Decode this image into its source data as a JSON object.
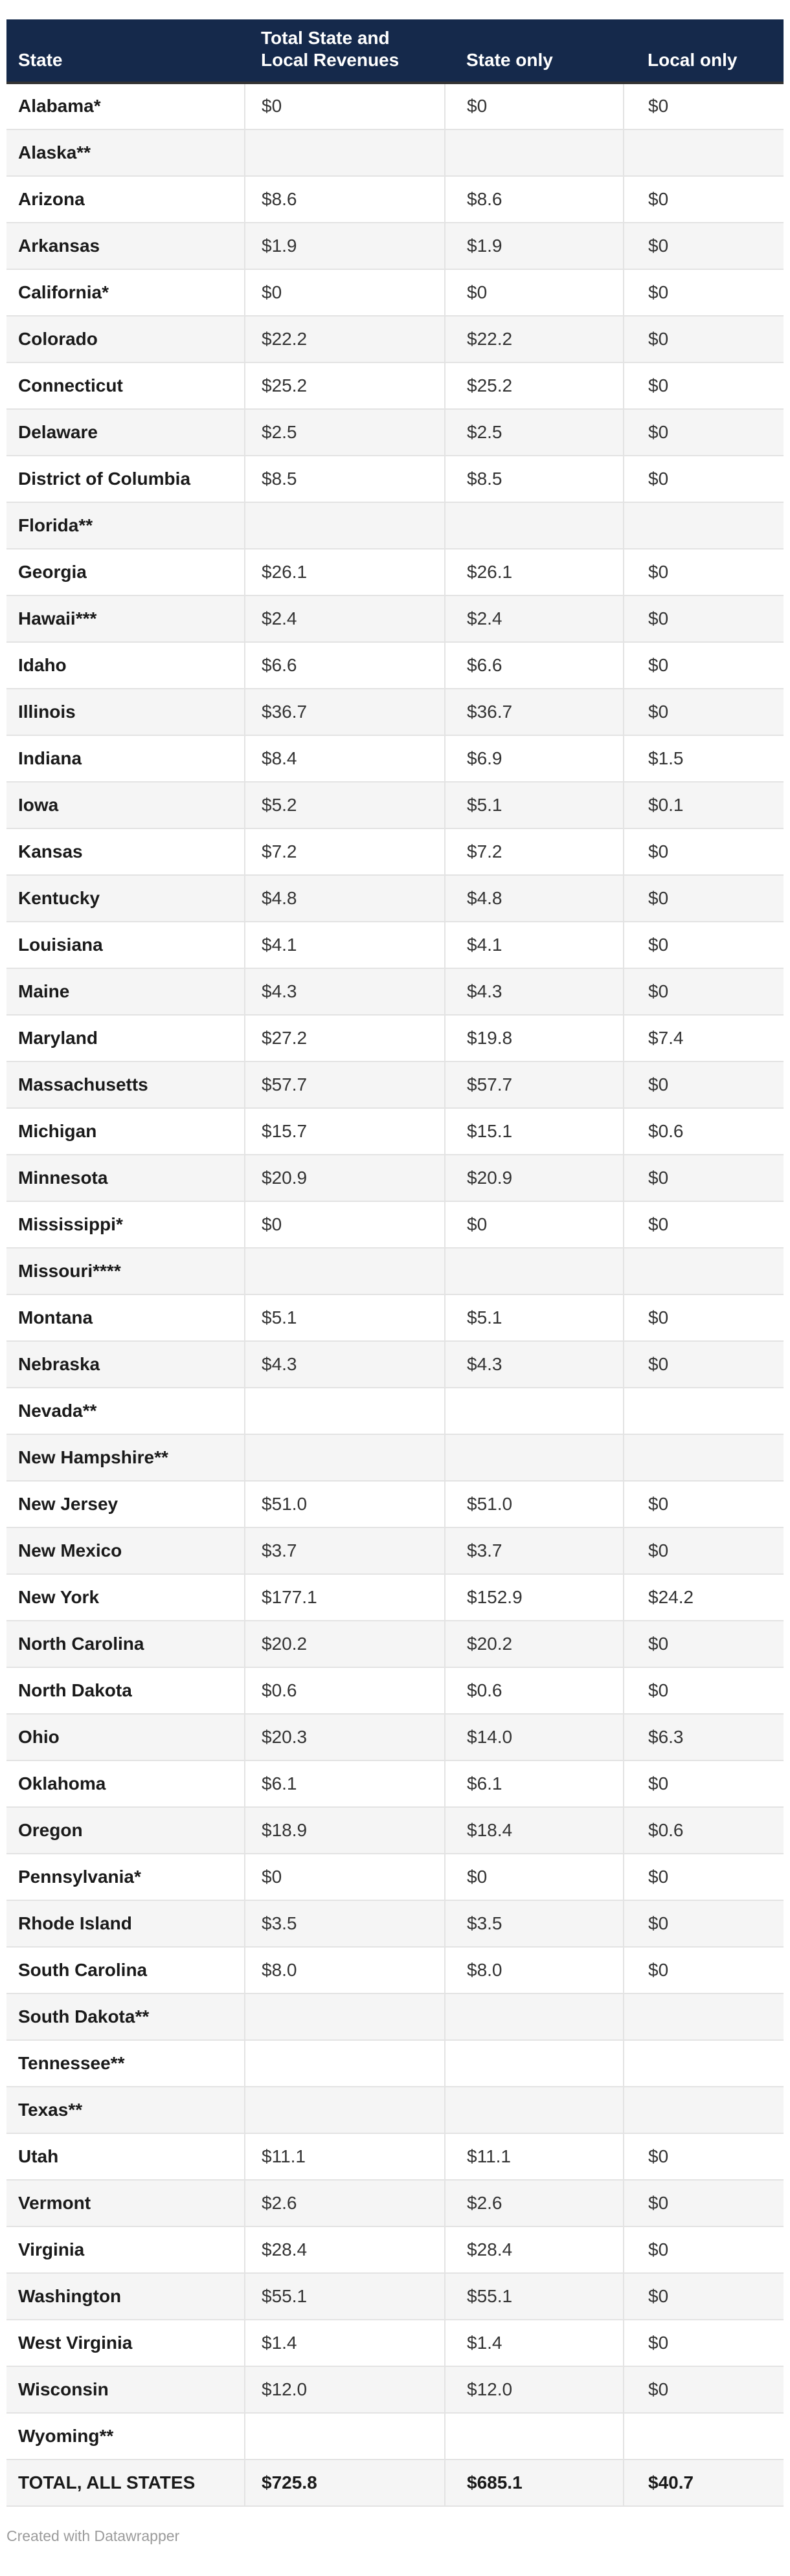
{
  "colors": {
    "header_bg": "#15294b",
    "header_text": "#ffffff",
    "header_bottom_border": "#333333",
    "row_stripe": "#f5f5f5",
    "row_border": "#e3e3e3",
    "state_text": "#1a1a1a",
    "value_text": "#333333",
    "credit_text": "#9b9b9b"
  },
  "footer": {
    "credit": "Created with Datawrapper"
  },
  "chart_data": {
    "type": "table",
    "columns": [
      "State",
      "Total State and Local Revenues",
      "State only",
      "Local only"
    ],
    "rows": [
      {
        "state": "Alabama*",
        "total": "$0",
        "state_only": "$0",
        "local_only": "$0"
      },
      {
        "state": "Alaska**",
        "total": "",
        "state_only": "",
        "local_only": ""
      },
      {
        "state": "Arizona",
        "total": "$8.6",
        "state_only": "$8.6",
        "local_only": "$0"
      },
      {
        "state": "Arkansas",
        "total": "$1.9",
        "state_only": "$1.9",
        "local_only": "$0"
      },
      {
        "state": "California*",
        "total": "$0",
        "state_only": "$0",
        "local_only": "$0"
      },
      {
        "state": "Colorado",
        "total": "$22.2",
        "state_only": "$22.2",
        "local_only": "$0"
      },
      {
        "state": "Connecticut",
        "total": "$25.2",
        "state_only": "$25.2",
        "local_only": "$0"
      },
      {
        "state": "Delaware",
        "total": "$2.5",
        "state_only": "$2.5",
        "local_only": "$0"
      },
      {
        "state": "District of Columbia",
        "total": "$8.5",
        "state_only": "$8.5",
        "local_only": "$0"
      },
      {
        "state": "Florida**",
        "total": "",
        "state_only": "",
        "local_only": ""
      },
      {
        "state": "Georgia",
        "total": "$26.1",
        "state_only": "$26.1",
        "local_only": "$0"
      },
      {
        "state": "Hawaii***",
        "total": "$2.4",
        "state_only": "$2.4",
        "local_only": "$0"
      },
      {
        "state": "Idaho",
        "total": "$6.6",
        "state_only": "$6.6",
        "local_only": "$0"
      },
      {
        "state": "Illinois",
        "total": "$36.7",
        "state_only": "$36.7",
        "local_only": "$0"
      },
      {
        "state": "Indiana",
        "total": "$8.4",
        "state_only": "$6.9",
        "local_only": "$1.5"
      },
      {
        "state": "Iowa",
        "total": "$5.2",
        "state_only": "$5.1",
        "local_only": "$0.1"
      },
      {
        "state": "Kansas",
        "total": "$7.2",
        "state_only": "$7.2",
        "local_only": "$0"
      },
      {
        "state": "Kentucky",
        "total": "$4.8",
        "state_only": "$4.8",
        "local_only": "$0"
      },
      {
        "state": "Louisiana",
        "total": "$4.1",
        "state_only": "$4.1",
        "local_only": "$0"
      },
      {
        "state": "Maine",
        "total": "$4.3",
        "state_only": "$4.3",
        "local_only": "$0"
      },
      {
        "state": "Maryland",
        "total": "$27.2",
        "state_only": "$19.8",
        "local_only": "$7.4"
      },
      {
        "state": "Massachusetts",
        "total": "$57.7",
        "state_only": "$57.7",
        "local_only": "$0"
      },
      {
        "state": "Michigan",
        "total": "$15.7",
        "state_only": "$15.1",
        "local_only": "$0.6"
      },
      {
        "state": "Minnesota",
        "total": "$20.9",
        "state_only": "$20.9",
        "local_only": "$0"
      },
      {
        "state": "Mississippi*",
        "total": "$0",
        "state_only": "$0",
        "local_only": "$0"
      },
      {
        "state": "Missouri****",
        "total": "",
        "state_only": "",
        "local_only": ""
      },
      {
        "state": "Montana",
        "total": "$5.1",
        "state_only": "$5.1",
        "local_only": "$0"
      },
      {
        "state": "Nebraska",
        "total": "$4.3",
        "state_only": "$4.3",
        "local_only": "$0"
      },
      {
        "state": "Nevada**",
        "total": "",
        "state_only": "",
        "local_only": ""
      },
      {
        "state": "New Hampshire**",
        "total": "",
        "state_only": "",
        "local_only": ""
      },
      {
        "state": "New Jersey",
        "total": "$51.0",
        "state_only": "$51.0",
        "local_only": "$0"
      },
      {
        "state": "New Mexico",
        "total": "$3.7",
        "state_only": "$3.7",
        "local_only": "$0"
      },
      {
        "state": "New York",
        "total": "$177.1",
        "state_only": "$152.9",
        "local_only": "$24.2"
      },
      {
        "state": "North Carolina",
        "total": "$20.2",
        "state_only": "$20.2",
        "local_only": "$0"
      },
      {
        "state": "North Dakota",
        "total": "$0.6",
        "state_only": "$0.6",
        "local_only": "$0"
      },
      {
        "state": "Ohio",
        "total": "$20.3",
        "state_only": "$14.0",
        "local_only": "$6.3"
      },
      {
        "state": "Oklahoma",
        "total": "$6.1",
        "state_only": "$6.1",
        "local_only": "$0"
      },
      {
        "state": "Oregon",
        "total": "$18.9",
        "state_only": "$18.4",
        "local_only": "$0.6"
      },
      {
        "state": "Pennsylvania*",
        "total": "$0",
        "state_only": "$0",
        "local_only": "$0"
      },
      {
        "state": "Rhode Island",
        "total": "$3.5",
        "state_only": "$3.5",
        "local_only": "$0"
      },
      {
        "state": "South Carolina",
        "total": "$8.0",
        "state_only": "$8.0",
        "local_only": "$0"
      },
      {
        "state": "South Dakota**",
        "total": "",
        "state_only": "",
        "local_only": ""
      },
      {
        "state": "Tennessee**",
        "total": "",
        "state_only": "",
        "local_only": ""
      },
      {
        "state": "Texas**",
        "total": "",
        "state_only": "",
        "local_only": ""
      },
      {
        "state": "Utah",
        "total": "$11.1",
        "state_only": "$11.1",
        "local_only": "$0"
      },
      {
        "state": "Vermont",
        "total": "$2.6",
        "state_only": "$2.6",
        "local_only": "$0"
      },
      {
        "state": "Virginia",
        "total": "$28.4",
        "state_only": "$28.4",
        "local_only": "$0"
      },
      {
        "state": "Washington",
        "total": "$55.1",
        "state_only": "$55.1",
        "local_only": "$0"
      },
      {
        "state": "West Virginia",
        "total": "$1.4",
        "state_only": "$1.4",
        "local_only": "$0"
      },
      {
        "state": "Wisconsin",
        "total": "$12.0",
        "state_only": "$12.0",
        "local_only": "$0"
      },
      {
        "state": "Wyoming**",
        "total": "",
        "state_only": "",
        "local_only": ""
      },
      {
        "state": "TOTAL, ALL STATES",
        "total": "$725.8",
        "state_only": "$685.1",
        "local_only": "$40.7",
        "bold": true
      }
    ]
  }
}
